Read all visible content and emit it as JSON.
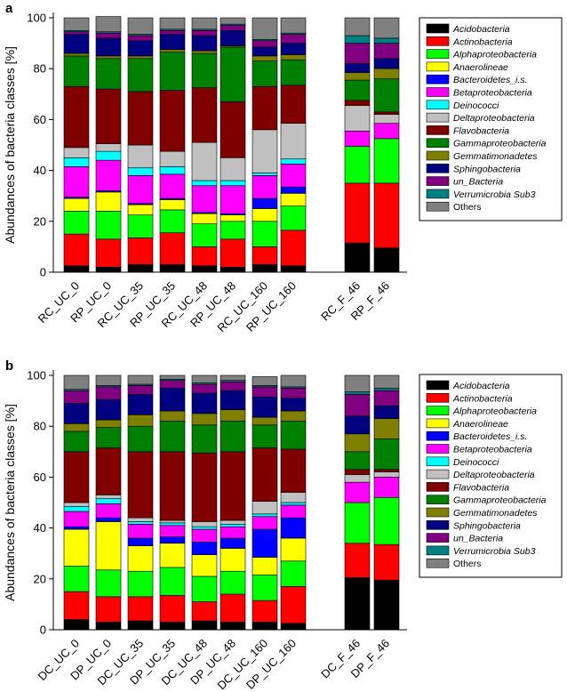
{
  "figure": {
    "legend": [
      {
        "name": "Acidobacteria",
        "color": "#000000"
      },
      {
        "name": "Actinobacteria",
        "color": "#ff0000"
      },
      {
        "name": "Alphaproteobacteria",
        "color": "#00ff00"
      },
      {
        "name": "Anaerolineae",
        "color": "#ffff00"
      },
      {
        "name": "Bacteroidetes_i.s.",
        "color": "#0000ff"
      },
      {
        "name": "Betaproteobacteria",
        "color": "#ff00ff"
      },
      {
        "name": "Deinococci",
        "color": "#00ffff"
      },
      {
        "name": "Deltaproteobacteria",
        "color": "#c0c0c0"
      },
      {
        "name": "Flavobacteria",
        "color": "#800000"
      },
      {
        "name": "Gammaproteobacteria",
        "color": "#008000"
      },
      {
        "name": "Gemmatimonadetes",
        "color": "#808000"
      },
      {
        "name": "Sphingobacteria",
        "color": "#000080"
      },
      {
        "name": "un_Bacteria",
        "color": "#800080"
      },
      {
        "name": "Verrumicrobia Sub3",
        "color": "#008080"
      },
      {
        "name": "Others",
        "color": "#808080"
      }
    ]
  },
  "chart_data": [
    {
      "panel": "a",
      "type": "bar",
      "stacked": true,
      "ylabel": "Abundances of bacteria classes [%]",
      "ylim": [
        0,
        100
      ],
      "yticks": [
        "0",
        "20",
        "40",
        "60",
        "80",
        "100"
      ],
      "categories": [
        "RC_UC_0",
        "RP_UC_0",
        "RC_UC_35",
        "RP_UC_35",
        "RC_UC_48",
        "RP_UC_48",
        "RC_UC_160",
        "RP_UC_160",
        "RC_F_46",
        "RP_F_46"
      ],
      "series": [
        {
          "name": "Acidobacteria",
          "values": [
            2.5,
            2,
            3,
            3,
            2.5,
            2,
            3,
            2.5,
            11.5,
            9.5
          ]
        },
        {
          "name": "Actinobacteria",
          "values": [
            12.5,
            11,
            10.5,
            12.5,
            7.5,
            11,
            7,
            14,
            23.5,
            25.5
          ]
        },
        {
          "name": "Alphaproteobacteria",
          "values": [
            9,
            11,
            9,
            9,
            9,
            7,
            10,
            9.5,
            14.5,
            17.5
          ]
        },
        {
          "name": "Anaerolineae",
          "values": [
            5,
            7.5,
            4,
            4,
            4,
            2.5,
            5,
            5,
            0,
            0
          ]
        },
        {
          "name": "Bacteroidetes_i.s.",
          "values": [
            0.5,
            0.5,
            0.5,
            0.5,
            0.5,
            0.5,
            4,
            2.5,
            0,
            0
          ]
        },
        {
          "name": "Betaproteobacteria",
          "values": [
            12,
            12,
            11,
            9.5,
            10.5,
            11,
            9,
            9,
            6,
            6
          ]
        },
        {
          "name": "Deinococci",
          "values": [
            3.5,
            3.5,
            3,
            3,
            2,
            2,
            1,
            2,
            0,
            0
          ]
        },
        {
          "name": "Deltaproteobacteria",
          "values": [
            4,
            3,
            9,
            6,
            15,
            9,
            17,
            14,
            10,
            3.5
          ]
        },
        {
          "name": "Flavobacteria",
          "values": [
            24,
            21.5,
            21,
            24,
            21.5,
            22,
            17,
            15,
            2,
            1
          ]
        },
        {
          "name": "Gammaproteobacteria",
          "values": [
            12,
            12,
            13,
            15,
            13.5,
            21.5,
            10,
            10,
            8,
            13
          ]
        },
        {
          "name": "Gemmatimonadetes",
          "values": [
            1,
            1,
            1,
            1,
            1,
            0.5,
            2,
            2,
            3,
            4
          ]
        },
        {
          "name": "Sphingobacteria",
          "values": [
            7.5,
            7,
            6,
            6,
            6,
            6,
            3.5,
            4.5,
            3.5,
            4
          ]
        },
        {
          "name": "un_Bacteria",
          "values": [
            1,
            2,
            2,
            1.5,
            2,
            2,
            2.5,
            3.5,
            8,
            6
          ]
        },
        {
          "name": "Verrumicrobia Sub3",
          "values": [
            0.5,
            0.5,
            0.5,
            0.5,
            0.5,
            0.5,
            0.5,
            0.5,
            3,
            2
          ]
        },
        {
          "name": "Others",
          "values": [
            5,
            6,
            6.5,
            4.5,
            4.5,
            2.5,
            8.5,
            6,
            7,
            8
          ]
        }
      ]
    },
    {
      "panel": "b",
      "type": "bar",
      "stacked": true,
      "ylabel": "Abundances of bacteria classes [%]",
      "ylim": [
        0,
        100
      ],
      "yticks": [
        "0",
        "20",
        "40",
        "60",
        "80",
        "100"
      ],
      "categories": [
        "DC_UC_0",
        "DP_UC_0",
        "DC_UC_35",
        "DP_UC_35",
        "DC_UC_48",
        "DP_UC_48",
        "DC_UC_160",
        "DP_UC_160",
        "DC_F_46",
        "DP_F_46"
      ],
      "series": [
        {
          "name": "Acidobacteria",
          "values": [
            4,
            3,
            3.5,
            3,
            3.5,
            3,
            3,
            2.5,
            20.5,
            19.5
          ]
        },
        {
          "name": "Actinobacteria",
          "values": [
            11,
            10,
            9.5,
            10.5,
            7.5,
            11,
            8.5,
            14.5,
            13.5,
            14
          ]
        },
        {
          "name": "Alphaproteobacteria",
          "values": [
            10,
            10.5,
            10,
            11,
            10,
            9,
            10,
            10,
            16,
            18.5
          ]
        },
        {
          "name": "Anaerolineae",
          "values": [
            14.5,
            19,
            10,
            9.5,
            8.5,
            9,
            7,
            9,
            0,
            0
          ]
        },
        {
          "name": "Bacteroidetes_i.s.",
          "values": [
            1,
            1.5,
            3,
            2.5,
            5,
            4,
            11,
            8,
            0,
            0
          ]
        },
        {
          "name": "Betaproteobacteria",
          "values": [
            6,
            5.5,
            5.5,
            4.5,
            5,
            4.5,
            5,
            5,
            8,
            8
          ]
        },
        {
          "name": "Deinococci",
          "values": [
            2,
            2,
            1,
            1,
            1,
            1,
            1,
            1,
            0,
            0
          ]
        },
        {
          "name": "Deltaproteobacteria",
          "values": [
            1.5,
            1.5,
            1.5,
            1,
            2,
            1.5,
            5,
            4,
            3,
            2
          ]
        },
        {
          "name": "Flavobacteria",
          "values": [
            20,
            18.5,
            26,
            27,
            27,
            27,
            21,
            17,
            2,
            1
          ]
        },
        {
          "name": "Gammaproteobacteria",
          "values": [
            8,
            8,
            10,
            12,
            11,
            12,
            9,
            11,
            7,
            12
          ]
        },
        {
          "name": "Gemmatimonadetes",
          "values": [
            3,
            3,
            4.5,
            4,
            4.5,
            4.5,
            3,
            4,
            7,
            8
          ]
        },
        {
          "name": "Sphingobacteria",
          "values": [
            8,
            8,
            8,
            9,
            8,
            7.5,
            8,
            5,
            7,
            5
          ]
        },
        {
          "name": "un_Bacteria",
          "values": [
            5,
            5,
            3.5,
            3,
            3.5,
            3.5,
            4,
            4,
            8.5,
            6
          ]
        },
        {
          "name": "Verrumicrobia Sub3",
          "values": [
            0.5,
            0.5,
            0.5,
            0.5,
            0.5,
            0.5,
            0.5,
            0.5,
            1,
            1
          ]
        },
        {
          "name": "Others",
          "values": [
            5.5,
            4,
            3.5,
            1.5,
            3,
            2,
            3.5,
            4.5,
            6.5,
            5
          ]
        }
      ]
    }
  ]
}
